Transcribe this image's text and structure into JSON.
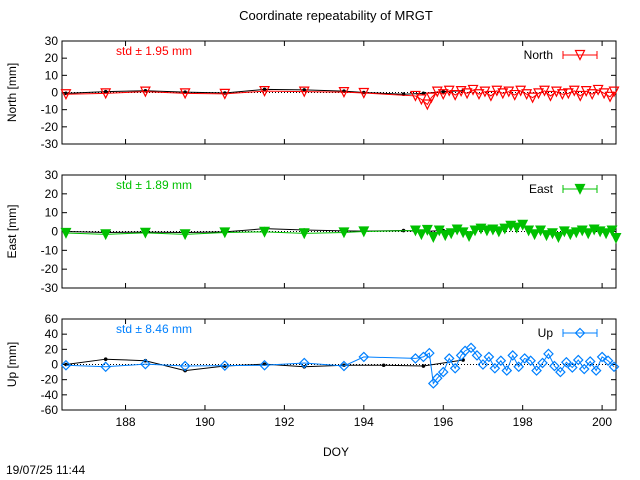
{
  "title": "Coordinate repeatability of MRGT",
  "timestamp": "19/07/25 11:44",
  "chart_data": {
    "type": "line",
    "xlabel": "DOY",
    "xlim": [
      186.4,
      200.35
    ],
    "xticks": [
      188,
      190,
      192,
      194,
      196,
      198,
      200
    ],
    "panels": [
      {
        "ylabel": "North [mm]",
        "ylim": [
          -30,
          30
        ],
        "yticks": [
          -30,
          -20,
          -10,
          0,
          10,
          20,
          30
        ],
        "std_label": "std ± 1.95 mm",
        "legend": "North",
        "color": "#ff0000",
        "marker": "triangle-down-open",
        "reference": {
          "x": [
            186.5,
            187.5,
            188.5,
            189.5,
            190.5,
            191.5,
            192.5,
            193.5,
            194,
            195,
            195.5,
            196,
            196.5
          ],
          "y": [
            -0.5,
            0.5,
            1.0,
            0.2,
            -0.3,
            1.8,
            1.5,
            0.8,
            0.0,
            -1.0,
            -0.5,
            0.5,
            1.0
          ]
        },
        "series": {
          "x": [
            186.5,
            187.5,
            188.5,
            189.5,
            190.5,
            191.5,
            192.5,
            193.5,
            194,
            195.3,
            195.45,
            195.6,
            195.7,
            195.85,
            196.0,
            196.15,
            196.3,
            196.45,
            196.6,
            196.75,
            196.9,
            197.05,
            197.2,
            197.35,
            197.5,
            197.65,
            197.8,
            197.95,
            198.1,
            198.25,
            198.4,
            198.55,
            198.7,
            198.85,
            199.0,
            199.15,
            199.3,
            199.45,
            199.6,
            199.75,
            199.9,
            200.05,
            200.2,
            200.3
          ],
          "y": [
            -1.0,
            -0.5,
            0.5,
            -0.5,
            -0.8,
            0.8,
            0.5,
            0.2,
            -0.3,
            -2.0,
            -4.0,
            -7.0,
            -3.0,
            0.5,
            -1.0,
            1.0,
            -1.5,
            0.8,
            -0.5,
            1.5,
            -1.0,
            0.5,
            -2.0,
            1.0,
            -0.5,
            0.5,
            -1.5,
            1.0,
            -1.0,
            -3.0,
            -0.5,
            1.0,
            -2.0,
            0.5,
            -1.0,
            -0.5,
            1.0,
            -2.0,
            0.8,
            -1.0,
            1.5,
            -0.5,
            -2.5,
            0.5
          ]
        }
      },
      {
        "ylabel": "East [mm]",
        "ylim": [
          -30,
          30
        ],
        "yticks": [
          -30,
          -20,
          -10,
          0,
          10,
          20,
          30
        ],
        "std_label": "std ± 1.89 mm",
        "legend": "East",
        "color": "#00c000",
        "marker": "triangle-down-filled",
        "reference": {
          "x": [
            186.5,
            187.5,
            188.5,
            189.5,
            190.5,
            191.5,
            192.5,
            193.5,
            194,
            195,
            195.5,
            196,
            196.5
          ],
          "y": [
            0.0,
            -0.5,
            -0.3,
            -0.5,
            -0.2,
            1.5,
            0.8,
            0.3,
            0.2,
            0.5,
            0.0,
            0.5,
            0.8
          ]
        },
        "series": {
          "x": [
            186.5,
            187.5,
            188.5,
            189.5,
            190.5,
            191.5,
            192.5,
            193.5,
            194,
            195.3,
            195.45,
            195.6,
            195.75,
            195.9,
            196.05,
            196.2,
            196.35,
            196.5,
            196.65,
            196.8,
            196.95,
            197.1,
            197.25,
            197.4,
            197.55,
            197.7,
            197.85,
            198.0,
            198.15,
            198.3,
            198.45,
            198.6,
            198.75,
            198.9,
            199.05,
            199.2,
            199.35,
            199.5,
            199.65,
            199.8,
            199.95,
            200.1,
            200.25,
            200.35
          ],
          "y": [
            -0.8,
            -1.5,
            -0.7,
            -1.5,
            -0.5,
            -0.2,
            -1.0,
            -0.5,
            0.0,
            0.5,
            -1.5,
            0.8,
            -3.0,
            0.5,
            -2.0,
            -1.0,
            1.0,
            -0.5,
            -2.5,
            0.5,
            1.5,
            0.5,
            1.0,
            0.0,
            1.5,
            3.0,
            2.0,
            3.5,
            0.5,
            -1.5,
            0.5,
            -2.0,
            -1.0,
            -3.0,
            0.0,
            -1.5,
            -0.5,
            0.5,
            -1.0,
            1.0,
            0.0,
            -1.0,
            0.5,
            -3.5
          ]
        }
      },
      {
        "ylabel": "Up [mm]",
        "ylim": [
          -60,
          60
        ],
        "yticks": [
          -60,
          -40,
          -20,
          0,
          20,
          40,
          60
        ],
        "std_label": "std ± 8.46 mm",
        "legend": "Up",
        "color": "#0080ff",
        "marker": "diamond-open",
        "reference": {
          "x": [
            186.5,
            187.5,
            188.5,
            189.5,
            190.5,
            191.5,
            192.5,
            193.5,
            194.5,
            195.5,
            196.5
          ],
          "y": [
            0.0,
            7.0,
            5.0,
            -8.0,
            -2.0,
            0.5,
            -3.0,
            -1.0,
            -1.0,
            -2.0,
            6.0
          ]
        },
        "series": {
          "x": [
            186.5,
            187.5,
            188.5,
            189.5,
            190.5,
            191.5,
            192.5,
            193.5,
            194.0,
            195.3,
            195.5,
            195.65,
            195.75,
            195.85,
            196.0,
            196.15,
            196.3,
            196.45,
            196.55,
            196.7,
            196.85,
            197.0,
            197.15,
            197.3,
            197.45,
            197.6,
            197.75,
            197.9,
            198.05,
            198.2,
            198.35,
            198.5,
            198.65,
            198.8,
            198.95,
            199.1,
            199.25,
            199.4,
            199.55,
            199.7,
            199.85,
            200.0,
            200.15,
            200.3
          ],
          "y": [
            -1.0,
            -3.0,
            0.5,
            -2.0,
            -1.5,
            -1.0,
            2.0,
            -2.0,
            10.0,
            8.0,
            10.0,
            15.0,
            -25.0,
            -18.0,
            -10.0,
            8.0,
            -5.0,
            12.0,
            18.0,
            22.0,
            12.0,
            0.0,
            10.0,
            -5.0,
            5.0,
            -8.0,
            12.0,
            -3.0,
            8.0,
            5.0,
            -8.0,
            2.0,
            14.0,
            -2.0,
            -10.0,
            3.0,
            -4.0,
            6.0,
            -6.0,
            4.0,
            -8.0,
            10.0,
            5.0,
            -3.0
          ]
        }
      }
    ]
  }
}
